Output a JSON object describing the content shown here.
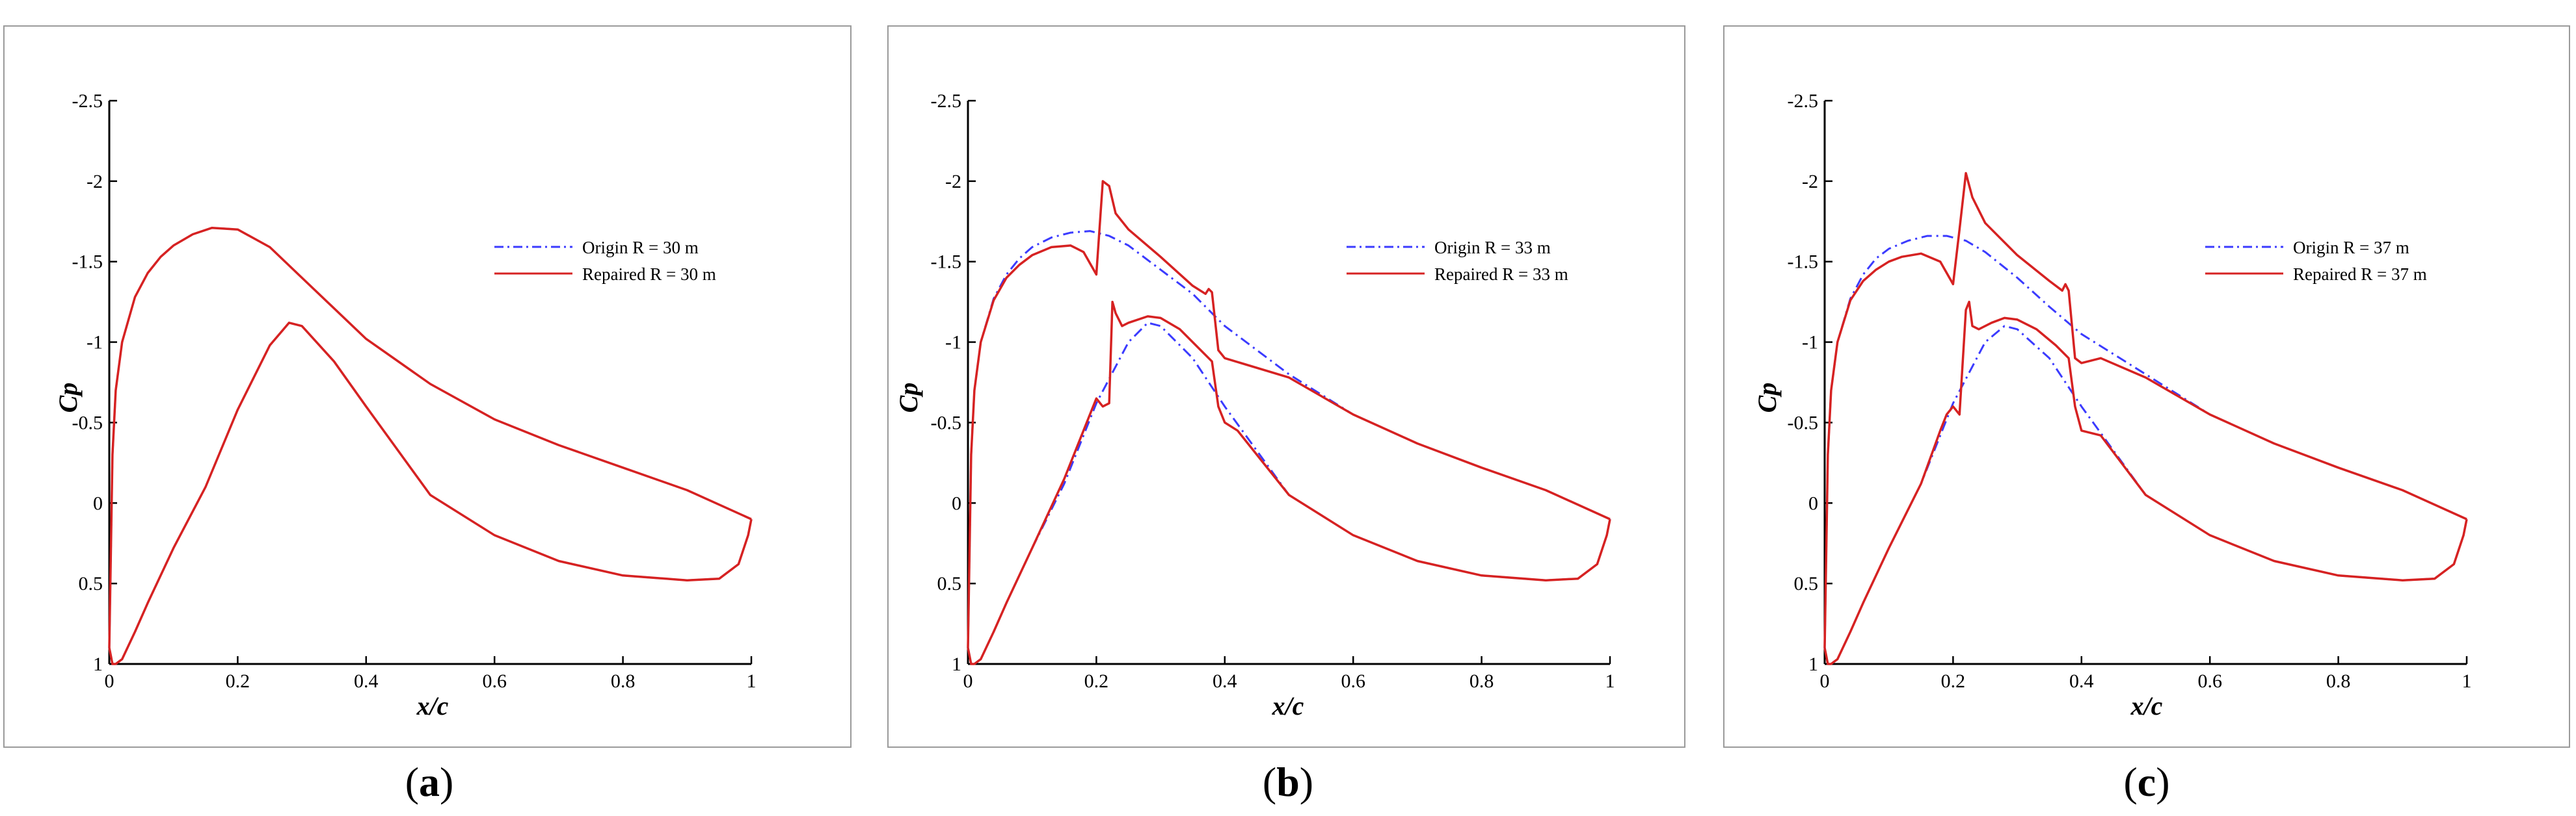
{
  "colors": {
    "origin": "#3b3bff",
    "repaired": "#d62222"
  },
  "chart_data": [
    {
      "type": "line",
      "panel_label": "a",
      "xlabel": "x/c",
      "ylabel": "Cp",
      "xlim": [
        0,
        1
      ],
      "ylim": [
        1,
        -2.5
      ],
      "y_inverted": true,
      "x_ticks": [
        "0",
        "0.2",
        "0.4",
        "0.6",
        "0.8",
        "1"
      ],
      "y_ticks": [
        "-2.5",
        "-2",
        "-1.5",
        "-1",
        "-0.5",
        "0",
        "0.5",
        "1"
      ],
      "legend": [
        "Origin R = 30 m",
        "Repaired R = 30 m"
      ],
      "series": [
        {
          "name": "Origin R = 30 m",
          "style": "dashdot",
          "color_key": "origin",
          "x": [
            0,
            0.005,
            0.01,
            0.02,
            0.04,
            0.06,
            0.08,
            0.1,
            0.13,
            0.16,
            0.2,
            0.25,
            0.3,
            0.4,
            0.5,
            0.6,
            0.7,
            0.8,
            0.9,
            1.0
          ],
          "y": [
            0.9,
            -0.3,
            -0.7,
            -1.0,
            -1.28,
            -1.43,
            -1.53,
            -1.6,
            -1.67,
            -1.71,
            -1.7,
            -1.59,
            -1.4,
            -1.02,
            -0.74,
            -0.52,
            -0.36,
            -0.22,
            -0.08,
            0.1
          ],
          "x2": [
            0,
            0.005,
            0.01,
            0.02,
            0.04,
            0.06,
            0.1,
            0.15,
            0.2,
            0.25,
            0.28,
            0.3,
            0.35,
            0.4,
            0.5,
            0.6,
            0.7,
            0.8,
            0.9,
            0.95,
            0.98,
            0.995,
            1.0
          ],
          "y2": [
            0.9,
            1.0,
            1.0,
            0.97,
            0.8,
            0.62,
            0.28,
            -0.1,
            -0.58,
            -0.98,
            -1.12,
            -1.1,
            -0.88,
            -0.6,
            -0.05,
            0.2,
            0.36,
            0.45,
            0.48,
            0.47,
            0.38,
            0.2,
            0.1
          ]
        },
        {
          "name": "Repaired R = 30 m",
          "style": "solid",
          "color_key": "repaired",
          "x": [
            0,
            0.005,
            0.01,
            0.02,
            0.04,
            0.06,
            0.08,
            0.1,
            0.13,
            0.16,
            0.2,
            0.25,
            0.3,
            0.4,
            0.5,
            0.6,
            0.7,
            0.8,
            0.9,
            1.0
          ],
          "y": [
            0.9,
            -0.3,
            -0.7,
            -1.0,
            -1.28,
            -1.43,
            -1.53,
            -1.6,
            -1.67,
            -1.71,
            -1.7,
            -1.59,
            -1.4,
            -1.02,
            -0.74,
            -0.52,
            -0.36,
            -0.22,
            -0.08,
            0.1
          ],
          "x2": [
            0,
            0.005,
            0.01,
            0.02,
            0.04,
            0.06,
            0.1,
            0.15,
            0.2,
            0.25,
            0.28,
            0.3,
            0.35,
            0.4,
            0.5,
            0.6,
            0.7,
            0.8,
            0.9,
            0.95,
            0.98,
            0.995,
            1.0
          ],
          "y2": [
            0.9,
            1.0,
            1.0,
            0.97,
            0.8,
            0.62,
            0.28,
            -0.1,
            -0.58,
            -0.98,
            -1.12,
            -1.1,
            -0.88,
            -0.6,
            -0.05,
            0.2,
            0.36,
            0.45,
            0.48,
            0.47,
            0.38,
            0.2,
            0.1
          ]
        }
      ]
    },
    {
      "type": "line",
      "panel_label": "b",
      "xlabel": "x/c",
      "ylabel": "Cp",
      "xlim": [
        0,
        1
      ],
      "ylim": [
        1,
        -2.5
      ],
      "y_inverted": true,
      "x_ticks": [
        "0",
        "0.2",
        "0.4",
        "0.6",
        "0.8",
        "1"
      ],
      "y_ticks": [
        "-2.5",
        "-2",
        "-1.5",
        "-1",
        "-0.5",
        "0",
        "0.5",
        "1"
      ],
      "legend": [
        "Origin R = 33 m",
        "Repaired R = 33 m"
      ],
      "series": [
        {
          "name": "Origin R = 33 m",
          "style": "dashdot",
          "color_key": "origin",
          "x": [
            0,
            0.005,
            0.01,
            0.02,
            0.04,
            0.06,
            0.08,
            0.1,
            0.13,
            0.16,
            0.19,
            0.22,
            0.25,
            0.3,
            0.35,
            0.4,
            0.5,
            0.6,
            0.7,
            0.8,
            0.9,
            1.0
          ],
          "y": [
            0.9,
            -0.3,
            -0.7,
            -1.0,
            -1.27,
            -1.42,
            -1.52,
            -1.59,
            -1.65,
            -1.68,
            -1.69,
            -1.66,
            -1.6,
            -1.45,
            -1.3,
            -1.1,
            -0.8,
            -0.55,
            -0.37,
            -0.22,
            -0.08,
            0.1
          ],
          "x2": [
            0,
            0.005,
            0.01,
            0.02,
            0.04,
            0.06,
            0.1,
            0.15,
            0.2,
            0.25,
            0.28,
            0.3,
            0.35,
            0.4,
            0.5,
            0.6,
            0.7,
            0.8,
            0.9,
            0.95,
            0.98,
            0.995,
            1.0
          ],
          "y2": [
            0.9,
            1.0,
            1.0,
            0.97,
            0.8,
            0.62,
            0.28,
            -0.12,
            -0.62,
            -1.0,
            -1.12,
            -1.1,
            -0.9,
            -0.6,
            -0.05,
            0.2,
            0.36,
            0.45,
            0.48,
            0.47,
            0.38,
            0.2,
            0.1
          ]
        },
        {
          "name": "Repaired R = 33 m",
          "style": "solid",
          "color_key": "repaired",
          "x": [
            0,
            0.005,
            0.01,
            0.02,
            0.04,
            0.06,
            0.08,
            0.1,
            0.13,
            0.16,
            0.18,
            0.2,
            0.21,
            0.22,
            0.23,
            0.25,
            0.3,
            0.35,
            0.37,
            0.375,
            0.38,
            0.39,
            0.4,
            0.5,
            0.6,
            0.7,
            0.8,
            0.9,
            1.0
          ],
          "y": [
            0.9,
            -0.3,
            -0.7,
            -1.0,
            -1.26,
            -1.4,
            -1.48,
            -1.54,
            -1.59,
            -1.6,
            -1.56,
            -1.42,
            -2.0,
            -1.97,
            -1.8,
            -1.7,
            -1.53,
            -1.35,
            -1.3,
            -1.33,
            -1.31,
            -0.95,
            -0.9,
            -0.78,
            -0.55,
            -0.37,
            -0.22,
            -0.08,
            0.1
          ],
          "x2": [
            0,
            0.005,
            0.01,
            0.02,
            0.04,
            0.06,
            0.1,
            0.15,
            0.19,
            0.2,
            0.21,
            0.22,
            0.225,
            0.23,
            0.24,
            0.25,
            0.28,
            0.3,
            0.33,
            0.36,
            0.38,
            0.39,
            0.4,
            0.42,
            0.5,
            0.6,
            0.7,
            0.8,
            0.9,
            0.95,
            0.98,
            0.995,
            1.0
          ],
          "y2": [
            0.9,
            1.0,
            1.0,
            0.97,
            0.8,
            0.62,
            0.28,
            -0.15,
            -0.55,
            -0.65,
            -0.6,
            -0.62,
            -1.25,
            -1.18,
            -1.1,
            -1.12,
            -1.16,
            -1.15,
            -1.08,
            -0.96,
            -0.88,
            -0.6,
            -0.5,
            -0.45,
            -0.05,
            0.2,
            0.36,
            0.45,
            0.48,
            0.47,
            0.38,
            0.2,
            0.1
          ]
        }
      ]
    },
    {
      "type": "line",
      "panel_label": "c",
      "xlabel": "x/c",
      "ylabel": "Cp",
      "xlim": [
        0,
        1
      ],
      "ylim": [
        1,
        -2.5
      ],
      "y_inverted": true,
      "x_ticks": [
        "0",
        "0.2",
        "0.4",
        "0.6",
        "0.8",
        "1"
      ],
      "y_ticks": [
        "-2.5",
        "-2",
        "-1.5",
        "-1",
        "-0.5",
        "0",
        "0.5",
        "1"
      ],
      "legend": [
        "Origin R = 37 m",
        "Repaired R = 37 m"
      ],
      "series": [
        {
          "name": "Origin R = 37 m",
          "style": "dashdot",
          "color_key": "origin",
          "x": [
            0,
            0.005,
            0.01,
            0.02,
            0.04,
            0.06,
            0.08,
            0.1,
            0.13,
            0.16,
            0.19,
            0.22,
            0.25,
            0.3,
            0.35,
            0.4,
            0.5,
            0.6,
            0.7,
            0.8,
            0.9,
            1.0
          ],
          "y": [
            0.9,
            -0.3,
            -0.7,
            -1.0,
            -1.27,
            -1.42,
            -1.52,
            -1.58,
            -1.63,
            -1.66,
            -1.66,
            -1.63,
            -1.56,
            -1.4,
            -1.22,
            -1.05,
            -0.8,
            -0.55,
            -0.37,
            -0.22,
            -0.08,
            0.1
          ],
          "x2": [
            0,
            0.005,
            0.01,
            0.02,
            0.04,
            0.06,
            0.1,
            0.15,
            0.2,
            0.25,
            0.28,
            0.3,
            0.35,
            0.4,
            0.5,
            0.6,
            0.7,
            0.8,
            0.9,
            0.95,
            0.98,
            0.995,
            1.0
          ],
          "y2": [
            0.9,
            1.0,
            1.0,
            0.97,
            0.8,
            0.62,
            0.28,
            -0.12,
            -0.62,
            -1.0,
            -1.1,
            -1.08,
            -0.9,
            -0.6,
            -0.05,
            0.2,
            0.36,
            0.45,
            0.48,
            0.47,
            0.38,
            0.2,
            0.1
          ]
        },
        {
          "name": "Repaired R = 37 m",
          "style": "solid",
          "color_key": "repaired",
          "x": [
            0,
            0.005,
            0.01,
            0.02,
            0.04,
            0.06,
            0.08,
            0.1,
            0.12,
            0.15,
            0.18,
            0.2,
            0.21,
            0.22,
            0.23,
            0.25,
            0.3,
            0.35,
            0.37,
            0.375,
            0.38,
            0.39,
            0.4,
            0.43,
            0.5,
            0.6,
            0.7,
            0.8,
            0.9,
            1.0
          ],
          "y": [
            0.9,
            -0.3,
            -0.7,
            -1.0,
            -1.26,
            -1.38,
            -1.45,
            -1.5,
            -1.53,
            -1.55,
            -1.5,
            -1.36,
            -1.7,
            -2.05,
            -1.9,
            -1.74,
            -1.54,
            -1.38,
            -1.32,
            -1.36,
            -1.32,
            -0.9,
            -0.87,
            -0.9,
            -0.78,
            -0.55,
            -0.37,
            -0.22,
            -0.08,
            0.1
          ],
          "x2": [
            0,
            0.005,
            0.01,
            0.02,
            0.04,
            0.06,
            0.1,
            0.15,
            0.18,
            0.19,
            0.2,
            0.21,
            0.22,
            0.225,
            0.23,
            0.24,
            0.26,
            0.28,
            0.3,
            0.33,
            0.36,
            0.38,
            0.39,
            0.4,
            0.43,
            0.5,
            0.6,
            0.7,
            0.8,
            0.9,
            0.95,
            0.98,
            0.995,
            1.0
          ],
          "y2": [
            0.9,
            1.0,
            1.0,
            0.97,
            0.8,
            0.62,
            0.28,
            -0.12,
            -0.45,
            -0.55,
            -0.6,
            -0.55,
            -1.2,
            -1.25,
            -1.1,
            -1.08,
            -1.12,
            -1.15,
            -1.14,
            -1.08,
            -0.98,
            -0.9,
            -0.6,
            -0.45,
            -0.42,
            -0.05,
            0.2,
            0.36,
            0.45,
            0.48,
            0.47,
            0.38,
            0.2,
            0.1
          ]
        }
      ]
    }
  ]
}
